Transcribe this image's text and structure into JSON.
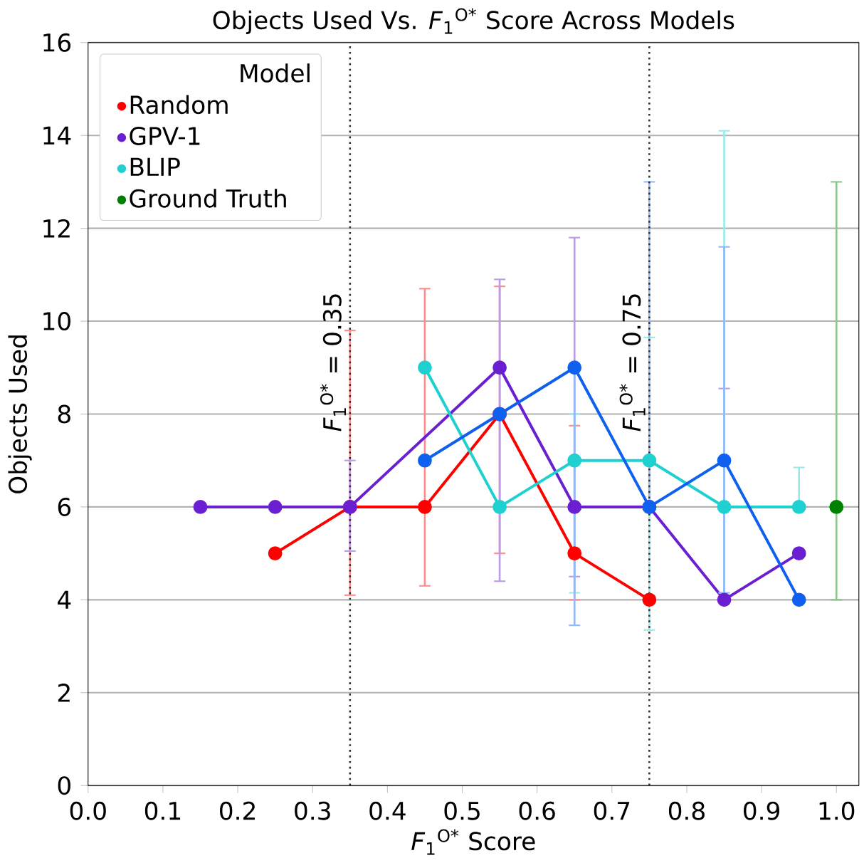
{
  "chart_data": {
    "type": "line",
    "title": "Objects Used Vs. *F*$_{1}$$^{O*}$ Score Across Models",
    "xlabel": "*F*$_{1}$$^{O*}$ Score",
    "ylabel": "Objects Used",
    "legend_title": "Model",
    "xlim": [
      0,
      1.03
    ],
    "ylim": [
      0,
      16
    ],
    "xticks": [
      {
        "value": 0,
        "label": "0.0"
      },
      {
        "value": 0.1,
        "label": "0.1"
      },
      {
        "value": 0.2,
        "label": "0.2"
      },
      {
        "value": 0.3,
        "label": "0.3"
      },
      {
        "value": 0.4,
        "label": "0.4"
      },
      {
        "value": 0.5,
        "label": "0.5"
      },
      {
        "value": 0.6,
        "label": "0.6"
      },
      {
        "value": 0.7,
        "label": "0.7"
      },
      {
        "value": 0.8,
        "label": "0.8"
      },
      {
        "value": 0.9,
        "label": "0.9"
      },
      {
        "value": 1.0,
        "label": "1.0"
      }
    ],
    "yticks": [
      0,
      2,
      4,
      6,
      8,
      10,
      12,
      14,
      16
    ],
    "grid": "y",
    "legend": "top left",
    "marker": "circle",
    "series": [
      {
        "name": "Random",
        "color": "#ff0000",
        "x": [
          0.25,
          0.35,
          0.45,
          0.55,
          0.65,
          0.75
        ],
        "values": [
          5,
          6,
          6,
          8,
          5,
          4
        ],
        "errors": [
          null,
          [
            4.1,
            9.8
          ],
          [
            4.3,
            10.7
          ],
          [
            5.0,
            10.75
          ],
          [
            4.0,
            7.75
          ],
          null
        ]
      },
      {
        "name": "GPV-1",
        "color": "#6a1fd0",
        "x": [
          0.15,
          0.25,
          0.35,
          0.55,
          0.65,
          0.75,
          0.85,
          0.95
        ],
        "values": [
          6,
          6,
          6,
          9,
          6,
          6,
          4,
          5
        ],
        "errors": [
          null,
          null,
          [
            5.05,
            7.0
          ],
          [
            4.4,
            10.9
          ],
          [
            4.5,
            11.8
          ],
          null,
          [
            4.0,
            8.55
          ],
          null
        ]
      },
      {
        "name": "BLIP",
        "color": "#1fd0d0",
        "x": [
          0.45,
          0.55,
          0.65,
          0.75,
          0.85,
          0.95
        ],
        "values": [
          9,
          6,
          7,
          7,
          6,
          6
        ],
        "errors": [
          null,
          null,
          [
            4.15,
            8.0
          ],
          [
            3.35,
            9.65
          ],
          [
            4.15,
            14.1
          ],
          [
            6.0,
            6.85
          ]
        ]
      },
      {
        "color": "#1060f0",
        "x": [
          0.45,
          0.55,
          0.65,
          0.75,
          0.85,
          0.95
        ],
        "values": [
          7,
          8,
          9,
          6,
          7,
          4
        ],
        "errors": [
          null,
          null,
          [
            3.45,
            9.0
          ],
          [
            6.0,
            13.0
          ],
          [
            4.15,
            11.6
          ],
          null
        ]
      },
      {
        "name": "Ground Truth",
        "type": "scatter",
        "color": "#008000",
        "x": [
          1.0
        ],
        "values": [
          6
        ],
        "errors": [
          [
            4.0,
            13.0
          ]
        ]
      }
    ],
    "ref_lines": [
      {
        "axis": "x",
        "value": 0.35,
        "label": "*F*$_{1}$$^{O*}$ = 0.35",
        "color": "#333333",
        "line_style": "dotted"
      },
      {
        "axis": "x",
        "value": 0.75,
        "label": "*F*$_{1}$$^{O*}$ = 0.75",
        "color": "#333333",
        "line_style": "dotted"
      }
    ]
  }
}
